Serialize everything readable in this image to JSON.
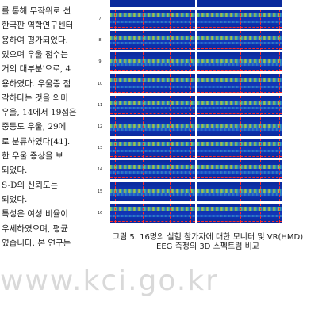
{
  "body_text": {
    "lines": [
      "를 통해 무작위로 선",
      "한국판 역학연구센터",
      "용하여 평가되었다.",
      "있으며 우울 점수는",
      "거의 대부분'으로, 4",
      "용하였다. 우울증 점",
      "각하다는 것을 의미",
      "우울, 14에서 19점은",
      "중등도 우울, 29에",
      "로 분류하였다[41].",
      "한 우울 증상을 보",
      "되었다.",
      "S-D의 신뢰도는",
      "되었다.",
      "특성은 여성 비율이",
      "우세하였으며, 평균",
      "였습니다. 본 연구는"
    ]
  },
  "figure": {
    "row_labels": [
      "7",
      "8",
      "9",
      "10",
      "11",
      "12",
      "13",
      "14",
      "15",
      "16"
    ],
    "colors": {
      "background": "#0a2a9c",
      "hot": "#d8e020",
      "marker": "#ff2a2a"
    }
  },
  "caption": {
    "line1": "그림 5. 16명의 실험 참가자에 대한 모니터 및 VR(HMD)",
    "line2": "EEG 측정의 3D 스펙트럼 비교"
  },
  "watermark": "www.kci.go.kr"
}
